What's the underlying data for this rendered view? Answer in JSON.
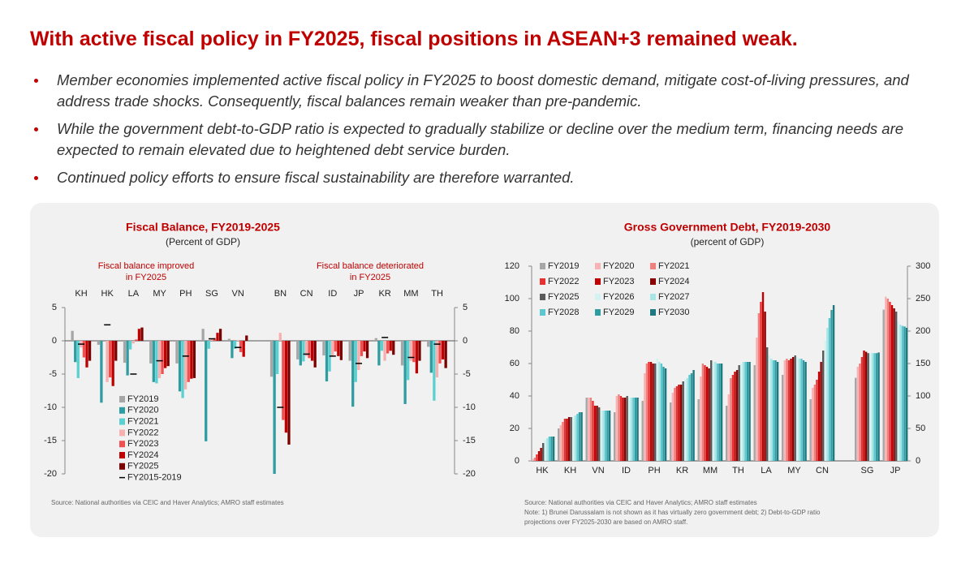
{
  "header": {
    "title": "With active fiscal policy in FY2025, fiscal positions in ASEAN+3 remained weak."
  },
  "bullets": [
    "Member economies implemented active fiscal policy in FY2025 to boost domestic demand, mitigate cost-of-living pressures, and address trade shocks. Consequently, fiscal balances remain weaker than pre-pandemic.",
    "While the government debt-to-GDP ratio is expected to gradually stabilize or decline over the medium term, financing needs are expected to remain elevated due to heightened debt service burden.",
    "Continued policy efforts to ensure fiscal sustainability are therefore warranted."
  ],
  "chart_data": [
    {
      "type": "bar",
      "title": "Fiscal Balance, FY2019-2025",
      "subtitle": "(Percent of GDP)",
      "annotations": [
        [
          "Fiscal balance improved",
          "in FY2025"
        ],
        [
          "Fiscal balance deteriorated",
          "in FY2025"
        ]
      ],
      "categories": [
        "KH",
        "HK",
        "LA",
        "MY",
        "PH",
        "SG",
        "VN",
        "BN",
        "CN",
        "ID",
        "JP",
        "KR",
        "MM",
        "TH"
      ],
      "ylim": [
        -20,
        5
      ],
      "yticks": [
        -20,
        -15,
        -10,
        -5,
        0,
        5
      ],
      "y2lim": [
        -20,
        5
      ],
      "y2ticks": [
        -20,
        -15,
        -10,
        -5,
        0,
        5
      ],
      "series": [
        {
          "name": "FY2019",
          "color": "#a6a6a6",
          "values": [
            1.5,
            -0.6,
            -3.3,
            -3.4,
            -3.4,
            1.8,
            0.3,
            -5.4,
            -2.8,
            -2.2,
            -3.0,
            0.4,
            -3.7,
            -0.9
          ]
        },
        {
          "name": "FY2020",
          "color": "#2e9ca0",
          "values": [
            -3.2,
            -9.3,
            -5.2,
            -6.2,
            -7.6,
            -15.1,
            -2.6,
            -20.0,
            -3.7,
            -6.1,
            -9.9,
            -3.7,
            -9.5,
            -4.8
          ]
        },
        {
          "name": "FY2021",
          "color": "#5bd0d0",
          "values": [
            -5.6,
            0.0,
            -1.3,
            -6.4,
            -8.6,
            -1.2,
            -1.2,
            -5.0,
            -3.1,
            -4.6,
            -6.2,
            -1.5,
            -5.9,
            -9.0
          ]
        },
        {
          "name": "FY2022",
          "color": "#f7b0b0",
          "values": [
            -1.0,
            -6.2,
            -0.4,
            -5.6,
            -7.3,
            0.3,
            0.1,
            1.2,
            -2.3,
            -2.4,
            -4.4,
            -3.0,
            -3.0,
            -5.5
          ]
        },
        {
          "name": "FY2023",
          "color": "#f05050",
          "values": [
            -2.5,
            -5.5,
            0.2,
            -5.0,
            -6.2,
            0.4,
            -1.7,
            -11.9,
            -2.6,
            -1.6,
            -2.3,
            -1.9,
            -3.2,
            -3.4
          ]
        },
        {
          "name": "FY2024",
          "color": "#c00000",
          "values": [
            -4.0,
            -6.8,
            1.8,
            -4.1,
            -5.7,
            1.2,
            -2.4,
            -13.8,
            -3.0,
            -2.3,
            -1.6,
            -1.5,
            -4.9,
            -2.8
          ]
        },
        {
          "name": "FY2025",
          "color": "#7a0000",
          "values": [
            -3.0,
            -3.0,
            2.0,
            -3.8,
            -5.6,
            1.8,
            0.8,
            -15.6,
            -4.0,
            -2.9,
            -2.6,
            -2.1,
            -3.0,
            -4.1
          ]
        },
        {
          "name": "FY2015-2019",
          "color": "#000000",
          "marker": "dash",
          "values": [
            -0.5,
            2.4,
            -5.0,
            -3.0,
            -2.3,
            0.3,
            -1.0,
            -10.0,
            -2.0,
            -2.3,
            -3.4,
            0.5,
            -2.5,
            -0.5
          ]
        }
      ],
      "source": "Source: National authorities via CEIC and Haver Analytics; AMRO staff estimates"
    },
    {
      "type": "bar",
      "title": "Gross Government Debt, FY2019-2030",
      "subtitle": "(percent of GDP)",
      "categories": [
        "HK",
        "KH",
        "VN",
        "ID",
        "PH",
        "KR",
        "MM",
        "TH",
        "LA",
        "MY",
        "CN",
        "SG",
        "JP"
      ],
      "category_axis": [
        "y",
        "y",
        "y",
        "y",
        "y",
        "y",
        "y",
        "y",
        "y",
        "y",
        "y",
        "y2",
        "y2"
      ],
      "ylim": [
        0,
        120
      ],
      "yticks": [
        0,
        20,
        40,
        60,
        80,
        100,
        120
      ],
      "y2lim": [
        0,
        300
      ],
      "y2ticks": [
        0,
        50,
        100,
        150,
        200,
        250,
        300
      ],
      "series": [
        {
          "name": "FY2019",
          "color": "#a6a6a6",
          "values": [
            0.3,
            20,
            39,
            30,
            37,
            36,
            38,
            34,
            59,
            53,
            38,
            128,
            233
          ]
        },
        {
          "name": "FY2020",
          "color": "#f8b4b4",
          "values": [
            1,
            22,
            39,
            40,
            54,
            42,
            52,
            41,
            76,
            62,
            45,
            145,
            253
          ]
        },
        {
          "name": "FY2021",
          "color": "#f08080",
          "values": [
            2,
            24,
            39,
            41,
            60,
            45,
            60,
            51,
            91,
            63,
            47,
            150,
            250
          ]
        },
        {
          "name": "FY2022",
          "color": "#e83030",
          "values": [
            4,
            26,
            37,
            40,
            61,
            46,
            59,
            53,
            98,
            62,
            50,
            160,
            245
          ]
        },
        {
          "name": "FY2023",
          "color": "#c00000",
          "values": [
            6,
            26,
            34,
            39,
            61,
            47,
            58,
            55,
            104,
            63,
            55,
            170,
            240
          ]
        },
        {
          "name": "FY2024",
          "color": "#8b0000",
          "values": [
            8,
            27,
            34,
            39,
            60,
            47,
            57,
            56,
            92,
            64,
            61,
            168,
            235
          ]
        },
        {
          "name": "FY2025",
          "color": "#595959",
          "values": [
            11,
            27,
            33,
            40,
            60,
            49,
            62,
            59,
            70,
            65,
            68,
            166,
            230
          ]
        },
        {
          "name": "FY2026",
          "color": "#d4f2f2",
          "values": [
            13,
            27,
            31,
            39,
            63,
            50,
            61,
            60,
            65,
            64,
            74,
            166,
            215
          ]
        },
        {
          "name": "FY2027",
          "color": "#a8e6e6",
          "values": [
            14,
            28,
            31,
            39,
            61,
            51,
            61,
            61,
            63,
            63,
            82,
            166,
            210
          ]
        },
        {
          "name": "FY2028",
          "color": "#5bc8d0",
          "values": [
            15,
            29,
            31,
            39,
            60,
            53,
            60,
            61,
            62,
            63,
            88,
            166,
            208
          ]
        },
        {
          "name": "FY2029",
          "color": "#2e9ca0",
          "values": [
            15,
            30,
            31,
            39,
            58,
            54,
            60,
            61,
            62,
            62,
            93,
            166,
            207
          ]
        },
        {
          "name": "FY2030",
          "color": "#1e7a80",
          "values": [
            15,
            30,
            31,
            39,
            57,
            56,
            60,
            61,
            61,
            61,
            96,
            167,
            205
          ]
        }
      ],
      "source": "Source: National authorities via CEIC and Haver Analytics; AMRO staff estimates",
      "note": "Note: 1) Brunei Darussalam is not shown as it has virtually zero government debt; 2) Debt-to-GDP ratio projections over FY2025-2030 are based on AMRO staff."
    }
  ]
}
